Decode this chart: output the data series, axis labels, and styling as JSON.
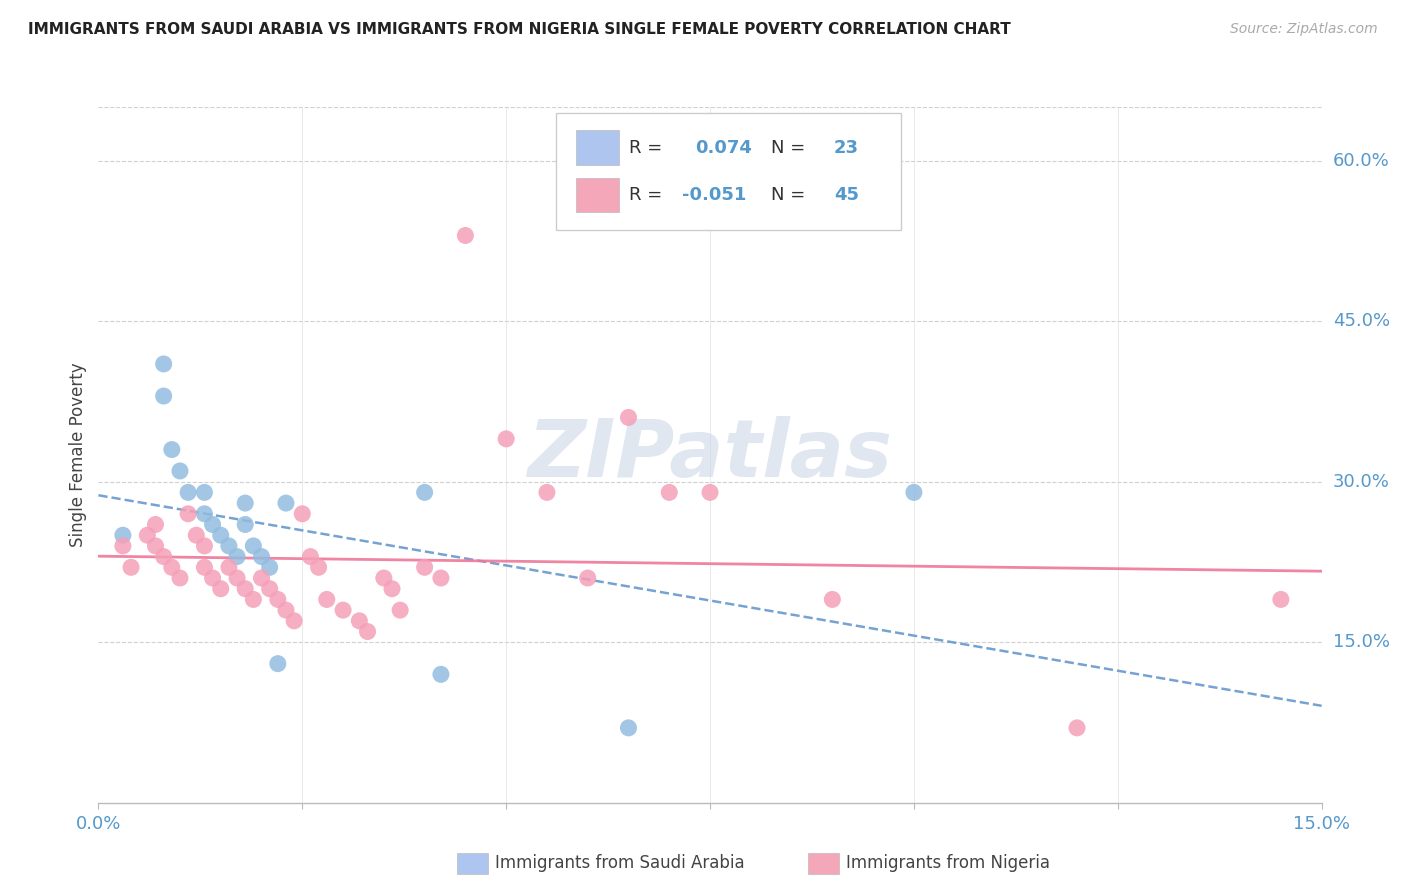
{
  "title": "IMMIGRANTS FROM SAUDI ARABIA VS IMMIGRANTS FROM NIGERIA SINGLE FEMALE POVERTY CORRELATION CHART",
  "source": "Source: ZipAtlas.com",
  "ylabel": "Single Female Poverty",
  "ylabel_right_labels": [
    "60.0%",
    "45.0%",
    "30.0%",
    "15.0%"
  ],
  "ylabel_right_values": [
    0.6,
    0.45,
    0.3,
    0.15
  ],
  "xmin": 0.0,
  "xmax": 0.15,
  "ymin": 0.0,
  "ymax": 0.65,
  "legend_colors": [
    "#aec6ef",
    "#f4a7b9"
  ],
  "watermark": "ZIPatlas",
  "saudi_color": "#92bce0",
  "nigeria_color": "#f4a0b8",
  "saudi_R": 0.074,
  "saudi_N": 23,
  "nigeria_R": -0.051,
  "nigeria_N": 45,
  "saudi_x": [
    0.003,
    0.008,
    0.008,
    0.009,
    0.01,
    0.011,
    0.013,
    0.013,
    0.014,
    0.015,
    0.016,
    0.017,
    0.018,
    0.018,
    0.019,
    0.02,
    0.021,
    0.022,
    0.023,
    0.04,
    0.042,
    0.065,
    0.1
  ],
  "saudi_y": [
    0.25,
    0.41,
    0.38,
    0.33,
    0.31,
    0.29,
    0.29,
    0.27,
    0.26,
    0.25,
    0.24,
    0.23,
    0.28,
    0.26,
    0.24,
    0.23,
    0.22,
    0.13,
    0.28,
    0.29,
    0.12,
    0.07,
    0.29
  ],
  "nigeria_x": [
    0.003,
    0.004,
    0.006,
    0.007,
    0.007,
    0.008,
    0.009,
    0.01,
    0.011,
    0.012,
    0.013,
    0.013,
    0.014,
    0.015,
    0.016,
    0.017,
    0.018,
    0.019,
    0.02,
    0.021,
    0.022,
    0.023,
    0.024,
    0.025,
    0.026,
    0.027,
    0.028,
    0.03,
    0.032,
    0.033,
    0.035,
    0.036,
    0.037,
    0.04,
    0.042,
    0.045,
    0.05,
    0.055,
    0.06,
    0.065,
    0.07,
    0.075,
    0.09,
    0.12,
    0.145
  ],
  "nigeria_y": [
    0.24,
    0.22,
    0.25,
    0.26,
    0.24,
    0.23,
    0.22,
    0.21,
    0.27,
    0.25,
    0.24,
    0.22,
    0.21,
    0.2,
    0.22,
    0.21,
    0.2,
    0.19,
    0.21,
    0.2,
    0.19,
    0.18,
    0.17,
    0.27,
    0.23,
    0.22,
    0.19,
    0.18,
    0.17,
    0.16,
    0.21,
    0.2,
    0.18,
    0.22,
    0.21,
    0.53,
    0.34,
    0.29,
    0.21,
    0.36,
    0.29,
    0.29,
    0.19,
    0.07,
    0.19
  ]
}
